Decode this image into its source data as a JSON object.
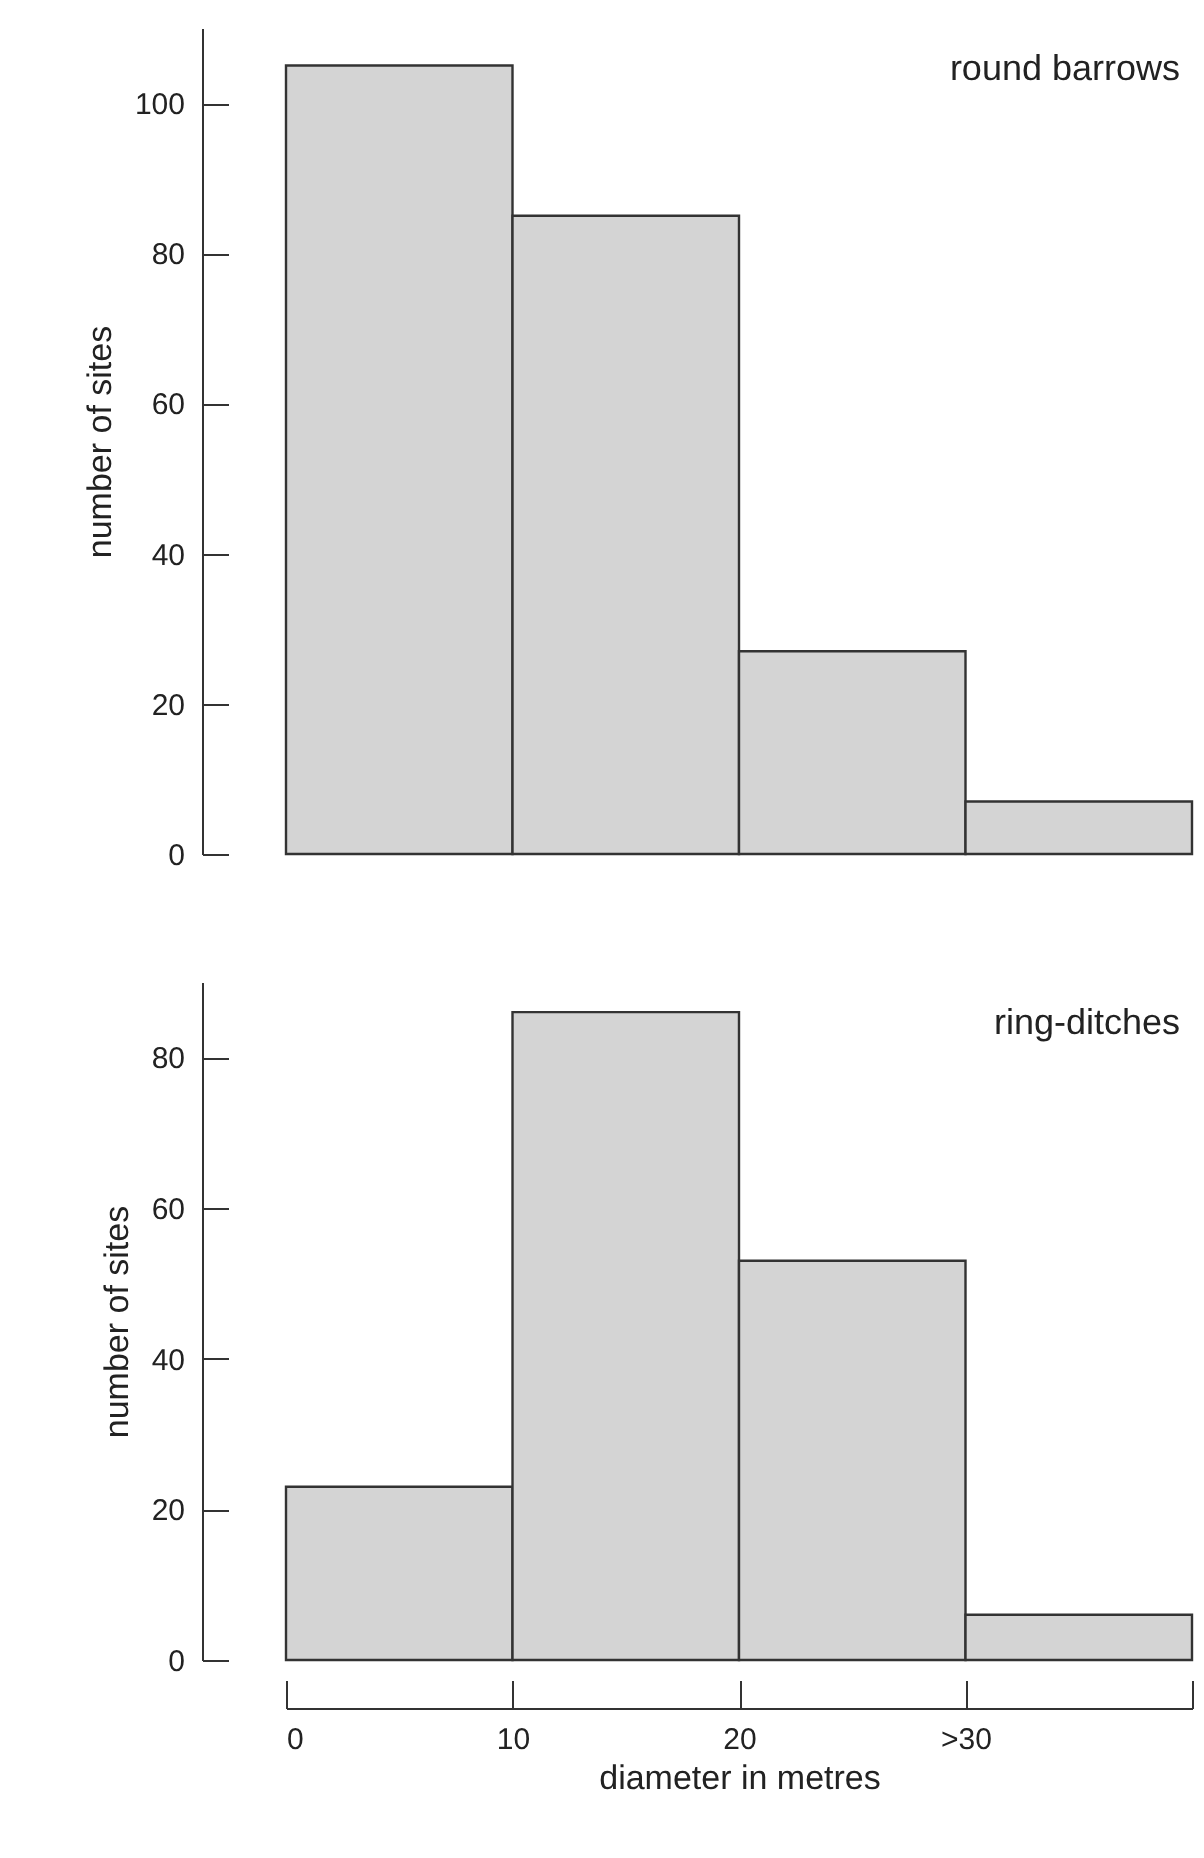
{
  "chart_data": [
    {
      "type": "histogram",
      "annotations": [
        "round barrows"
      ],
      "ylabel": "number of sites",
      "color": "#d4d4d4",
      "bins": [
        0,
        10,
        20,
        30,
        40
      ],
      "values": [
        105,
        85,
        27,
        7
      ],
      "xlim": [
        0,
        40
      ],
      "ylim": [
        0,
        110
      ],
      "yticks": [
        0,
        20,
        40,
        60,
        80,
        100
      ],
      "tick_labels": "y"
    },
    {
      "type": "histogram",
      "annotations": [
        "ring-ditches"
      ],
      "ylabel": "number of sites",
      "xlabel": "diameter in metres",
      "color": "#d4d4d4",
      "bins": [
        0,
        10,
        20,
        30,
        40
      ],
      "values": [
        23,
        86,
        53,
        6
      ],
      "xlim": [
        0,
        40
      ],
      "xticks": [
        0,
        10,
        20,
        {
          "value": 30,
          "label": ">30"
        },
        {
          "value": 40,
          "label": null
        }
      ],
      "ylim": [
        0,
        90
      ],
      "yticks": [
        0,
        20,
        40,
        60,
        80
      ]
    }
  ]
}
